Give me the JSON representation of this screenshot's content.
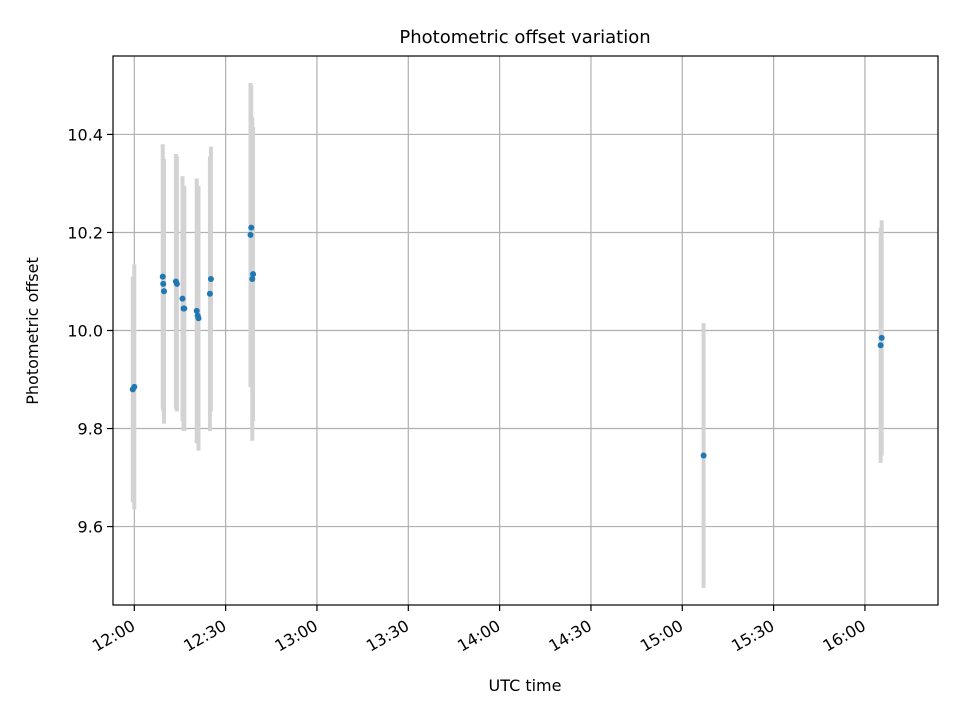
{
  "chart_data": {
    "type": "scatter",
    "title": "Photometric offset variation",
    "xlabel": "UTC time",
    "ylabel": "Photometric offset",
    "x_ticks": [
      "12:00",
      "12:30",
      "13:00",
      "13:30",
      "14:00",
      "14:30",
      "15:00",
      "15:30",
      "16:00"
    ],
    "y_ticks": [
      "9.6",
      "9.8",
      "10.0",
      "10.2",
      "10.4"
    ],
    "xlim": [
      "11:53",
      "16:24"
    ],
    "ylim": [
      9.44,
      10.56
    ],
    "grid": true,
    "marker_color": "#1f77b4",
    "errorbar_color": "#d3d3d3",
    "series": [
      {
        "points": [
          {
            "x": "11:59:30",
            "y": 9.88,
            "err": 0.23
          },
          {
            "x": "12:00:00",
            "y": 9.885,
            "err": 0.25
          },
          {
            "x": "12:09:20",
            "y": 10.11,
            "err": 0.27
          },
          {
            "x": "12:09:30",
            "y": 10.095,
            "err": 0.26
          },
          {
            "x": "12:09:45",
            "y": 10.08,
            "err": 0.27
          },
          {
            "x": "12:13:40",
            "y": 10.1,
            "err": 0.26
          },
          {
            "x": "12:14:00",
            "y": 10.095,
            "err": 0.26
          },
          {
            "x": "12:15:50",
            "y": 10.065,
            "err": 0.25
          },
          {
            "x": "12:16:10",
            "y": 10.045,
            "err": 0.25
          },
          {
            "x": "12:16:25",
            "y": 10.045,
            "err": 0.25
          },
          {
            "x": "12:20:30",
            "y": 10.04,
            "err": 0.27
          },
          {
            "x": "12:20:50",
            "y": 10.03,
            "err": 0.26
          },
          {
            "x": "12:21:05",
            "y": 10.025,
            "err": 0.27
          },
          {
            "x": "12:24:50",
            "y": 10.075,
            "err": 0.28
          },
          {
            "x": "12:25:10",
            "y": 10.105,
            "err": 0.27
          },
          {
            "x": "12:38:10",
            "y": 10.195,
            "err": 0.31
          },
          {
            "x": "12:38:25",
            "y": 10.21,
            "err": 0.29
          },
          {
            "x": "12:38:45",
            "y": 10.105,
            "err": 0.33
          },
          {
            "x": "12:39:00",
            "y": 10.115,
            "err": 0.3
          },
          {
            "x": "15:07:00",
            "y": 9.745,
            "err": 0.27
          },
          {
            "x": "16:05:10",
            "y": 9.97,
            "err": 0.24
          },
          {
            "x": "16:05:30",
            "y": 9.985,
            "err": 0.24
          }
        ]
      }
    ]
  }
}
